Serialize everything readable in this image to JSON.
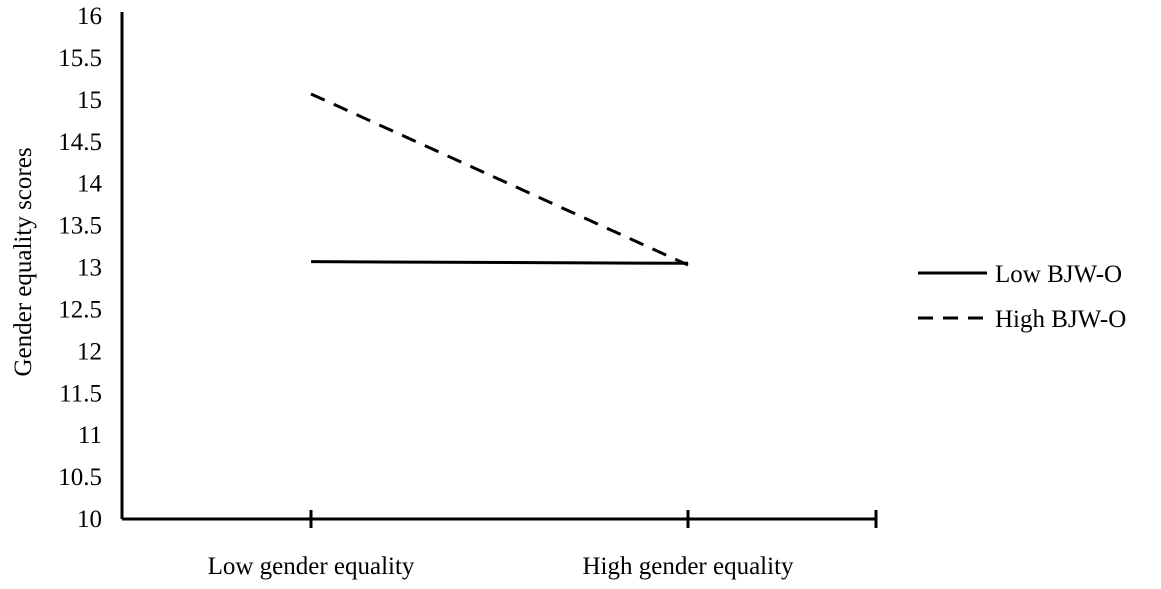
{
  "chart_data": {
    "type": "line",
    "title": "",
    "xlabel": "",
    "ylabel": "Gender equality scores",
    "categories": [
      "Low gender equality",
      "High gender equality"
    ],
    "ylim": [
      10,
      16
    ],
    "yticks": [
      "10",
      "10.5",
      "11",
      "11.5",
      "12",
      "12.5",
      "13",
      "13.5",
      "14",
      "14.5",
      "15",
      "15.5",
      "16"
    ],
    "series": [
      {
        "name": "Low BJW-O",
        "values": [
          13.07,
          13.05
        ],
        "line_style": "solid",
        "color": "#000000"
      },
      {
        "name": "High BJW-O",
        "values": [
          15.07,
          13.03
        ],
        "line_style": "dashed",
        "color": "#000000"
      }
    ],
    "grid": false,
    "legend_position": "right"
  }
}
